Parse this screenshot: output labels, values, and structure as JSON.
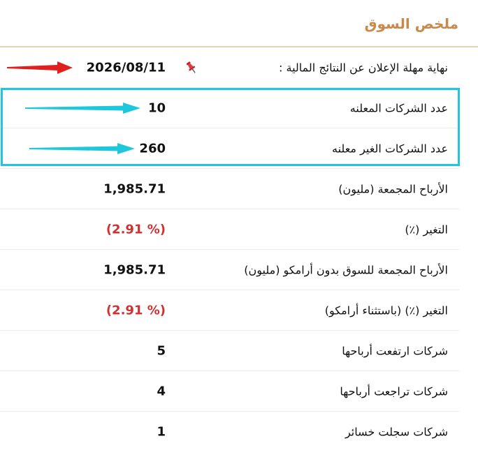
{
  "title": "ملخص السوق",
  "rows": [
    {
      "label": "نهاية مهلة الإعلان عن النتائج المالية :",
      "value": "2026/08/11"
    },
    {
      "label": "عدد الشركات المعلنه",
      "value": "10"
    },
    {
      "label": "عدد الشركات الغير معلنه",
      "value": "260"
    },
    {
      "label": "الأرباح المجمعة (مليون)",
      "value": "1,985.71"
    },
    {
      "label": "التغير (٪)",
      "value": "(2.91 %)"
    },
    {
      "label": "الأرباح المجمعة للسوق بدون أرامكو (مليون)",
      "value": "1,985.71"
    },
    {
      "label": "التغير (٪) (باستثناء أرامكو)",
      "value": "(2.91 %)"
    },
    {
      "label": "شركات ارتفعت أرباحها",
      "value": "5"
    },
    {
      "label": "شركات تراجعت أرباحها",
      "value": "4"
    },
    {
      "label": "شركات سجلت خسائر",
      "value": "1"
    }
  ],
  "icons": {
    "pin": "pushpin-icon",
    "arrows": [
      "red-arrow",
      "cyan-arrow",
      "cyan-arrow"
    ]
  },
  "colors": {
    "title": "#c8894a",
    "negative": "#d0302f",
    "highlight": "#1fc7dd",
    "red_arrow": "#e0201e"
  }
}
